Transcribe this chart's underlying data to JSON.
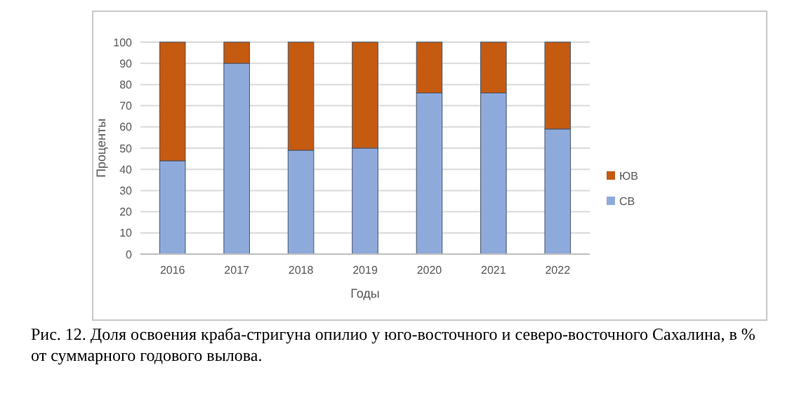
{
  "chart_data": {
    "type": "bar",
    "stacked": true,
    "xlabel": "Годы",
    "ylabel": "Проценты",
    "categories": [
      "2016",
      "2017",
      "2018",
      "2019",
      "2020",
      "2021",
      "2022"
    ],
    "series": [
      {
        "name": "СВ",
        "color": "#8eaadb",
        "values": [
          44,
          90,
          49,
          50,
          76,
          76,
          59
        ]
      },
      {
        "name": "ЮВ",
        "color": "#c55a11",
        "values": [
          56,
          10,
          51,
          50,
          24,
          24,
          41
        ]
      }
    ],
    "ylim": [
      0,
      100
    ],
    "yticks": [
      0,
      10,
      20,
      30,
      40,
      50,
      60,
      70,
      80,
      90,
      100
    ],
    "grid": "y",
    "legend": "right",
    "annotations": [
      "Рис. 12. Доля освоения краба-стригуна опилио у юго-восточного и северо-восточного Сахалина, в % от суммарного годового вылова."
    ]
  }
}
